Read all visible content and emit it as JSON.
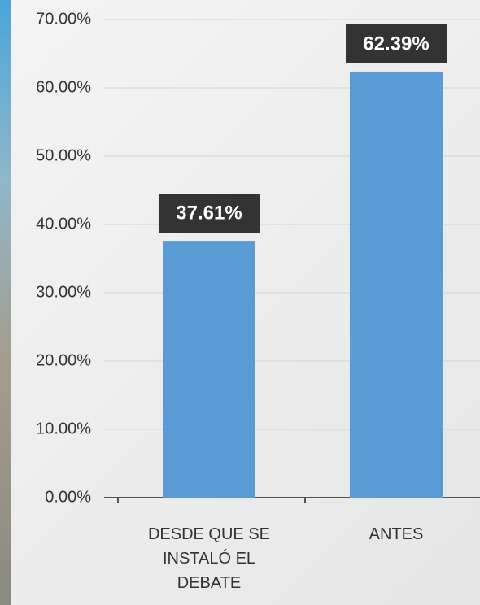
{
  "chart_data": {
    "type": "bar",
    "categories": [
      "DESDE QUE SE INSTALÓ EL DEBATE",
      "ANTES"
    ],
    "values": [
      37.61,
      62.39
    ],
    "value_labels": [
      "37.61%",
      "62.39%"
    ],
    "color": "#5b9bd5",
    "ylim": [
      0,
      70
    ],
    "yticks": [
      {
        "value": 0,
        "label": "0.00%"
      },
      {
        "value": 10,
        "label": "10.00%"
      },
      {
        "value": 20,
        "label": "20.00%"
      },
      {
        "value": 30,
        "label": "30.00%"
      },
      {
        "value": 40,
        "label": "40.00%"
      },
      {
        "value": 50,
        "label": "50.00%"
      },
      {
        "value": 60,
        "label": "60.00%"
      },
      {
        "value": 70,
        "label": "70.00%"
      }
    ],
    "grid": true
  }
}
